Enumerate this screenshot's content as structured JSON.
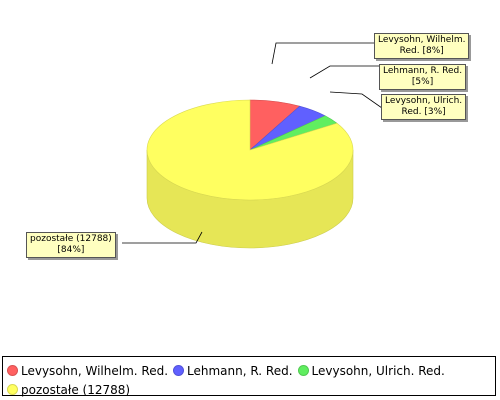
{
  "chart_data": {
    "type": "pie",
    "title": "",
    "categories": [
      "Levysohn, Wilhelm. Red.",
      "Lehmann, R. Red.",
      "Levysohn, Ulrich. Red.",
      "pozostałe (12788)"
    ],
    "values": [
      8,
      5,
      3,
      84
    ],
    "colors": [
      "#ff6060",
      "#6060ff",
      "#60ee60",
      "#ffff60"
    ],
    "labels": [
      [
        "Levysohn, Wilhelm.",
        "Red. [8%]"
      ],
      [
        "Lehmann, R. Red.",
        "[5%]"
      ],
      [
        "Levysohn, Ulrich.",
        "Red. [3%]"
      ],
      [
        "pozostałe (12788)",
        "[84%]"
      ]
    ],
    "style": "3d",
    "legend": "bottom"
  },
  "legend": {
    "items": [
      "Levysohn, Wilhelm. Red.",
      "Lehmann, R. Red.",
      "Levysohn, Ulrich. Red.",
      "pozostałe (12788)"
    ]
  }
}
